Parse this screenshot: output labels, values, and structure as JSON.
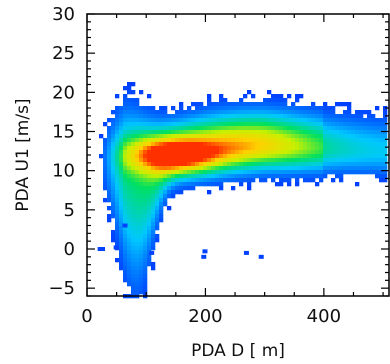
{
  "chart_data": {
    "type": "heatmap",
    "title": "",
    "xlabel": "PDA  D  [ m]",
    "ylabel": "PDA  U1  [m/s]",
    "xlim": [
      0,
      510
    ],
    "ylim": [
      -6,
      30
    ],
    "x_ticks": [
      0,
      200,
      400
    ],
    "x_tick_labels": [
      "0",
      "200",
      "400"
    ],
    "y_ticks": [
      -5,
      0,
      5,
      10,
      15,
      20,
      25,
      30
    ],
    "y_tick_labels": [
      "−5",
      "0",
      "5",
      "10",
      "15",
      "20",
      "25",
      "30"
    ],
    "grid": false,
    "colormap": [
      "#0033ff",
      "#00c8ff",
      "#00e060",
      "#c8f000",
      "#ffd000",
      "#ff3000"
    ],
    "density_peak": {
      "x": 140,
      "y": 12
    }
  }
}
